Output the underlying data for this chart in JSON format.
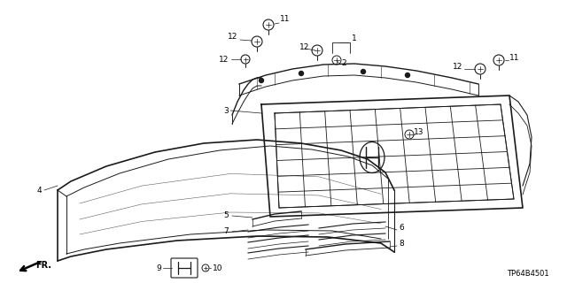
{
  "bg_color": "#ffffff",
  "line_color": "#1a1a1a",
  "label_color": "#000000",
  "label_fontsize": 6.5,
  "diagram_code": "TP64B4501",
  "figsize": [
    6.4,
    3.2
  ],
  "dpi": 100
}
